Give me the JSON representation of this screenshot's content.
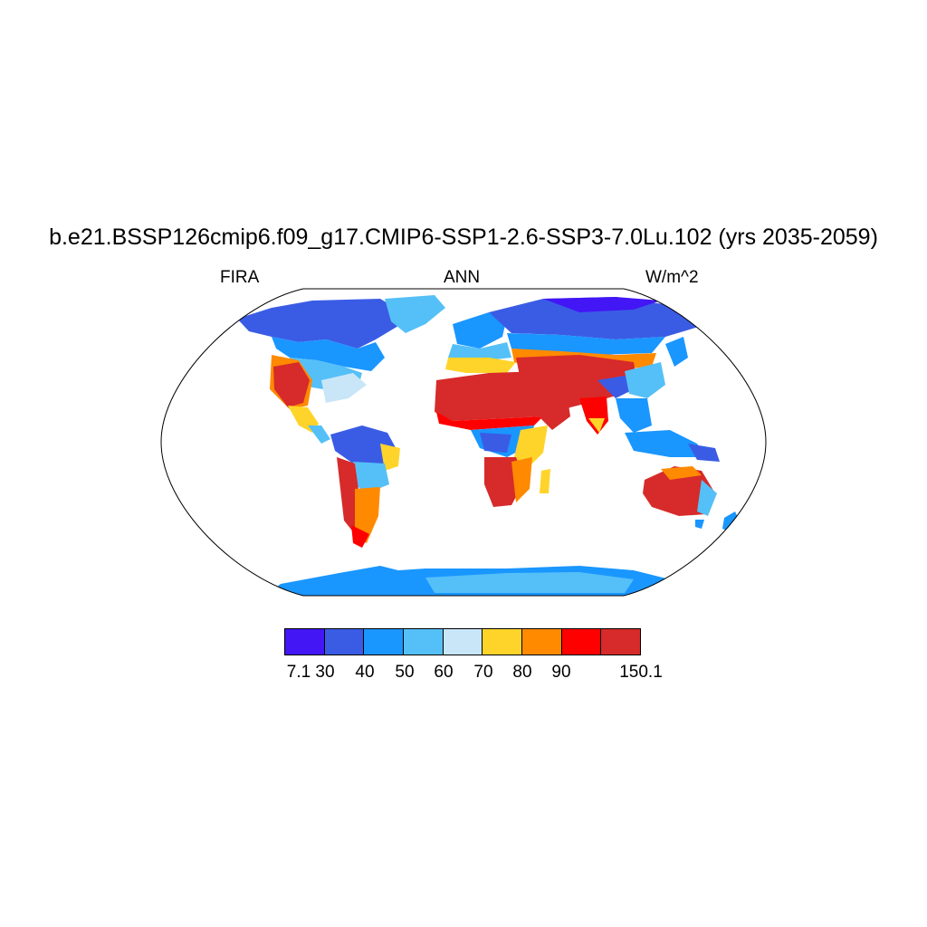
{
  "header": {
    "title": "b.e21.BSSP126cmip6.f09_g17.CMIP6-SSP1-2.6-SSP3-7.0Lu.102 (yrs 2035-2059)",
    "left_label": "FIRA",
    "center_label": "ANN",
    "right_label": "W/m^2"
  },
  "map": {
    "projection": "robinson",
    "variable": "FIRA",
    "season": "ANN",
    "units": "W/m^2"
  },
  "legend": {
    "colors": [
      "#4316f5",
      "#3a5ce5",
      "#1a96ff",
      "#55c0f7",
      "#c8e6f7",
      "#ffd42a",
      "#ff8a00",
      "#ff0000",
      "#d72a2a"
    ],
    "tick_labels": [
      "7.1",
      "30",
      "40",
      "50",
      "60",
      "70",
      "80",
      "90",
      "150.1"
    ]
  }
}
